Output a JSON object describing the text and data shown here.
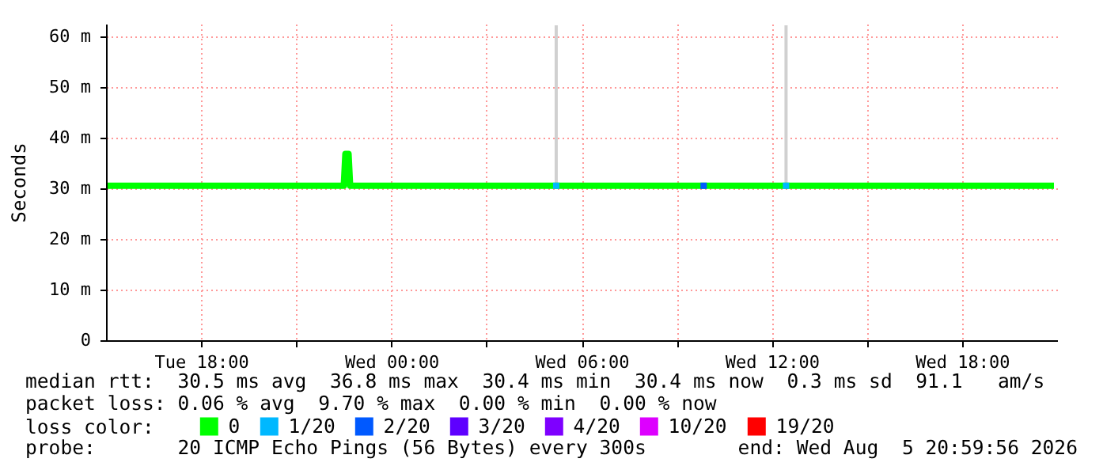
{
  "chart_data": {
    "type": "line",
    "ylabel": "Seconds",
    "legend_title": "loss color:",
    "xlim": [
      "2026-08-04T15:00",
      "2026-08-05T21:00"
    ],
    "xticks": [
      {
        "value": "2026-08-04T18:00",
        "label": "Tue 18:00"
      },
      {
        "value": "2026-08-04T21:00",
        "label": null
      },
      {
        "value": "2026-08-05T00:00",
        "label": "Wed 00:00"
      },
      {
        "value": "2026-08-05T03:00",
        "label": null
      },
      {
        "value": "2026-08-05T06:00",
        "label": "Wed 06:00"
      },
      {
        "value": "2026-08-05T09:00",
        "label": null
      },
      {
        "value": "2026-08-05T12:00",
        "label": "Wed 12:00"
      },
      {
        "value": "2026-08-05T15:00",
        "label": null
      },
      {
        "value": "2026-08-05T18:00",
        "label": "Wed 18:00"
      }
    ],
    "ylim": [
      0,
      62.5
    ],
    "yticks": [
      {
        "value": 0,
        "label": "0"
      },
      {
        "value": 10,
        "label": "10 m"
      },
      {
        "value": 20,
        "label": "20 m"
      },
      {
        "value": 30,
        "label": "30 m"
      },
      {
        "value": 40,
        "label": "40 m"
      },
      {
        "value": 50,
        "label": "50 m"
      },
      {
        "value": 60,
        "label": "60 m"
      }
    ],
    "grid": true,
    "legend": "bottom left",
    "series": [
      {
        "type": "bar",
        "color": "#d0d0d0",
        "x": [
          "2026-08-05T05:12",
          "2026-08-05T12:27"
        ],
        "base": [
          30.5,
          30.5
        ],
        "values": [
          31.7,
          31.7
        ]
      },
      {
        "name": "0",
        "color": "#00ff00",
        "x": [
          "2026-08-04T15:03",
          "2026-08-04T22:30",
          "2026-08-04T22:33",
          "2026-08-04T22:39",
          "2026-08-04T22:42",
          "2026-08-05T20:54"
        ],
        "values": [
          30.5,
          30.5,
          36.8,
          36.8,
          30.5,
          30.5
        ]
      },
      {
        "type": "scatter",
        "name": "1/20",
        "color": "#00b8ff",
        "marker": "square",
        "x": [
          "2026-08-05T05:12",
          "2026-08-05T12:27"
        ],
        "values": [
          30.5,
          30.5
        ]
      },
      {
        "type": "scatter",
        "name": "2/20",
        "color": "#0059ff",
        "marker": "square",
        "x": [
          "2026-08-05T09:51"
        ],
        "values": [
          30.5
        ]
      },
      {
        "type": "scatter",
        "name": "3/20",
        "color": "#5e00ff",
        "marker": "square"
      },
      {
        "type": "scatter",
        "name": "4/20",
        "color": "#7e00ff",
        "marker": "square"
      },
      {
        "type": "scatter",
        "name": "10/20",
        "color": "#dd00ff",
        "marker": "square"
      },
      {
        "type": "scatter",
        "name": "19/20",
        "color": "#ff0000",
        "marker": "square"
      }
    ],
    "annotations": [
      "median rtt:  30.5 ms avg  36.8 ms max  30.4 ms min  30.4 ms now  0.3 ms sd  91.1   am/s",
      "packet loss: 0.06 % avg  9.70 % max  0.00 % min  0.00 % now",
      "probe:       20 ICMP Echo Pings (56 Bytes) every 300s",
      "end: Wed Aug  5 20:59:56 2026"
    ]
  }
}
